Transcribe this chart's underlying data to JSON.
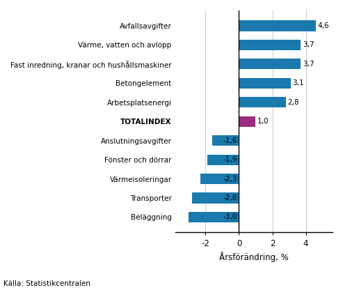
{
  "categories": [
    "Beläggning",
    "Transporter",
    "Värmeisoleringar",
    "Fönster och dörrar",
    "Anslutningsavgifter",
    "TOTALINDEX",
    "Arbetsplatsenergi",
    "Betongelement",
    "Fast inredning, kranar och hushållsmaskiner",
    "Värme, vatten och avlopp",
    "Avfallsavgifter"
  ],
  "values": [
    -3.0,
    -2.8,
    -2.3,
    -1.9,
    -1.6,
    1.0,
    2.8,
    3.1,
    3.7,
    3.7,
    4.6
  ],
  "colors": [
    "#1a7aad",
    "#1a7aad",
    "#1a7aad",
    "#1a7aad",
    "#1a7aad",
    "#9b2c7e",
    "#1a7aad",
    "#1a7aad",
    "#1a7aad",
    "#1a7aad",
    "#1a7aad"
  ],
  "xlabel": "Årsförändring, %",
  "source": "Källa: Statistikcentralen",
  "xlim": [
    -3.8,
    5.6
  ],
  "xticks": [
    -2,
    0,
    2,
    4
  ],
  "value_labels": [
    "-3,0",
    "-2,8",
    "-2,3",
    "-1,9",
    "-1,6",
    "1,0",
    "2,8",
    "3,1",
    "3,7",
    "3,7",
    "4,6"
  ],
  "totalindex_idx": 5,
  "bar_height": 0.55,
  "background_color": "#ffffff",
  "grid_color": "#cccccc",
  "axis_color": "#000000",
  "label_fontsize": 7.5,
  "tick_fontsize": 8.5,
  "value_fontsize": 7.5,
  "xlabel_fontsize": 8.5,
  "source_fontsize": 7.5
}
